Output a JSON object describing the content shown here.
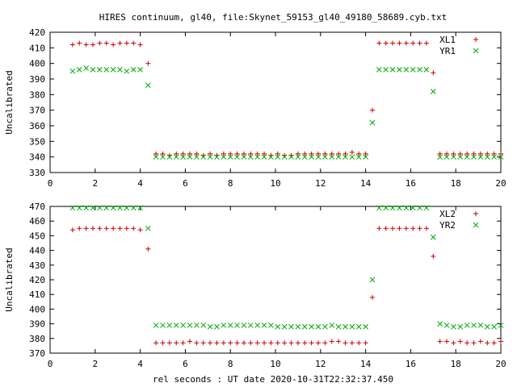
{
  "title": "HIRES continuum, gl40, file:Skynet_59153_gl40_49180_58689.cyb.txt",
  "xlabel": "rel seconds : UT date 2020-10-31T22:32:37.450",
  "colors": {
    "series_a": "#cc0000",
    "series_b": "#00aa00",
    "frame": "#000000"
  },
  "chart_data": [
    {
      "type": "scatter",
      "ylabel": "Uncalibrated",
      "xlim": [
        0,
        20
      ],
      "ylim": [
        330,
        420
      ],
      "xticks": [
        0,
        2,
        4,
        6,
        8,
        10,
        12,
        14,
        16,
        18,
        20
      ],
      "yticks": [
        330,
        340,
        350,
        360,
        370,
        380,
        390,
        400,
        410,
        420
      ],
      "grid": false,
      "legend_position": "top-right",
      "x": [
        1.0,
        1.3,
        1.6,
        1.9,
        2.2,
        2.5,
        2.8,
        3.1,
        3.4,
        3.7,
        4.0,
        4.35,
        4.7,
        5.0,
        5.3,
        5.6,
        5.9,
        6.2,
        6.5,
        6.8,
        7.1,
        7.4,
        7.7,
        8.0,
        8.3,
        8.6,
        8.9,
        9.2,
        9.5,
        9.8,
        10.1,
        10.4,
        10.7,
        11.0,
        11.3,
        11.6,
        11.9,
        12.2,
        12.5,
        12.8,
        13.1,
        13.4,
        13.7,
        14.0,
        14.3,
        14.6,
        14.9,
        15.2,
        15.5,
        15.8,
        16.1,
        16.4,
        16.7,
        17.0,
        17.3,
        17.6,
        17.9,
        18.2,
        18.5,
        18.8,
        19.1,
        19.4,
        19.7,
        20.0
      ],
      "series": [
        {
          "name": "XL1",
          "marker": "plus",
          "values": [
            412,
            413,
            412,
            412,
            413,
            413,
            412,
            413,
            413,
            413,
            412,
            400,
            342,
            342,
            341,
            342,
            342,
            342,
            342,
            341,
            342,
            341,
            342,
            342,
            342,
            342,
            342,
            342,
            342,
            341,
            342,
            341,
            341,
            342,
            342,
            342,
            342,
            342,
            342,
            342,
            342,
            343,
            342,
            342,
            370,
            413,
            413,
            413,
            413,
            413,
            413,
            413,
            413,
            394,
            342,
            342,
            342,
            342,
            342,
            342,
            342,
            342,
            342,
            342
          ]
        },
        {
          "name": "YR1",
          "marker": "cross",
          "values": [
            395,
            396,
            397,
            396,
            396,
            396,
            396,
            396,
            395,
            396,
            396,
            386,
            340,
            340,
            340,
            340,
            340,
            340,
            340,
            340,
            340,
            340,
            340,
            340,
            340,
            340,
            340,
            340,
            340,
            340,
            340,
            340,
            340,
            340,
            340,
            340,
            340,
            340,
            340,
            340,
            340,
            340,
            340,
            340,
            362,
            396,
            396,
            396,
            396,
            396,
            396,
            396,
            396,
            382,
            340,
            340,
            340,
            340,
            340,
            340,
            340,
            340,
            340,
            340
          ]
        }
      ]
    },
    {
      "type": "scatter",
      "ylabel": "Uncalibrated",
      "xlim": [
        0,
        20
      ],
      "ylim": [
        370,
        470
      ],
      "xticks": [
        0,
        2,
        4,
        6,
        8,
        10,
        12,
        14,
        16,
        18,
        20
      ],
      "yticks": [
        370,
        380,
        390,
        400,
        410,
        420,
        430,
        440,
        450,
        460,
        470
      ],
      "grid": false,
      "legend_position": "top-right",
      "x": [
        1.0,
        1.3,
        1.6,
        1.9,
        2.2,
        2.5,
        2.8,
        3.1,
        3.4,
        3.7,
        4.0,
        4.35,
        4.7,
        5.0,
        5.3,
        5.6,
        5.9,
        6.2,
        6.5,
        6.8,
        7.1,
        7.4,
        7.7,
        8.0,
        8.3,
        8.6,
        8.9,
        9.2,
        9.5,
        9.8,
        10.1,
        10.4,
        10.7,
        11.0,
        11.3,
        11.6,
        11.9,
        12.2,
        12.5,
        12.8,
        13.1,
        13.4,
        13.7,
        14.0,
        14.3,
        14.6,
        14.9,
        15.2,
        15.5,
        15.8,
        16.1,
        16.4,
        16.7,
        17.0,
        17.3,
        17.6,
        17.9,
        18.2,
        18.5,
        18.8,
        19.1,
        19.4,
        19.7,
        20.0
      ],
      "series": [
        {
          "name": "XL2",
          "marker": "plus",
          "values": [
            454,
            455,
            455,
            455,
            455,
            455,
            455,
            455,
            455,
            455,
            454,
            441,
            377,
            377,
            377,
            377,
            377,
            378,
            377,
            377,
            377,
            377,
            377,
            377,
            377,
            377,
            377,
            377,
            377,
            377,
            377,
            377,
            377,
            377,
            377,
            377,
            377,
            377,
            378,
            378,
            377,
            377,
            377,
            377,
            408,
            455,
            455,
            455,
            455,
            455,
            455,
            455,
            455,
            436,
            378,
            378,
            377,
            378,
            377,
            377,
            378,
            377,
            377,
            378
          ]
        },
        {
          "name": "YR2",
          "marker": "cross",
          "values": [
            469,
            469,
            469,
            469,
            469,
            469,
            469,
            469,
            469,
            469,
            469,
            455,
            389,
            389,
            389,
            389,
            389,
            389,
            389,
            389,
            388,
            388,
            389,
            389,
            389,
            389,
            389,
            389,
            389,
            389,
            388,
            388,
            388,
            388,
            388,
            388,
            388,
            388,
            389,
            388,
            388,
            388,
            388,
            388,
            420,
            469,
            469,
            469,
            469,
            469,
            469,
            469,
            469,
            449,
            390,
            389,
            388,
            388,
            389,
            389,
            389,
            388,
            388,
            389
          ]
        }
      ]
    }
  ]
}
